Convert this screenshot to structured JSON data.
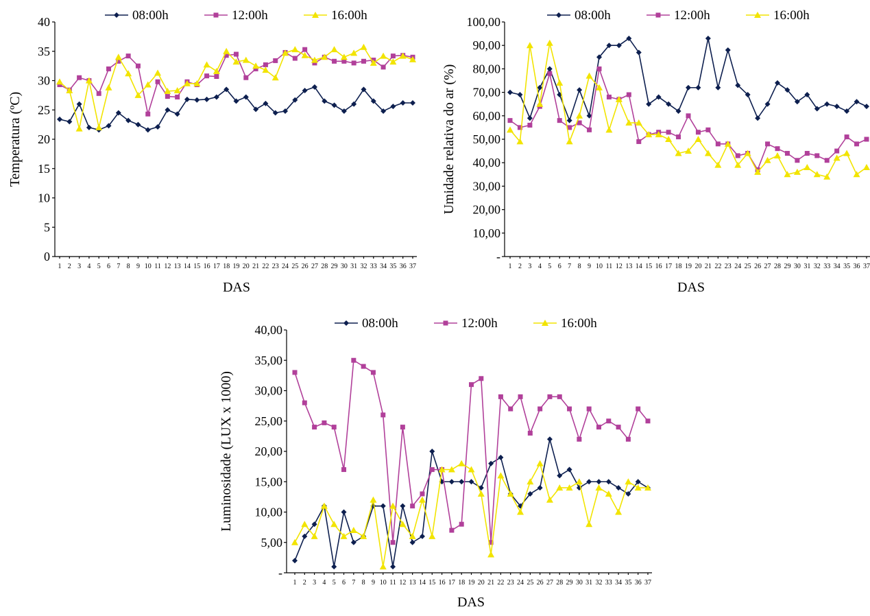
{
  "colors": {
    "s0800": "#0d1f4f",
    "s1200": "#b1409a",
    "s1600": "#f2e400"
  },
  "chart_data": [
    {
      "id": "temp",
      "type": "line",
      "title": "",
      "xlabel": "DAS",
      "ylabel": "Temperatura (ºC)",
      "ylim": [
        0,
        40
      ],
      "y_ticks": [
        "0",
        "5",
        "10",
        "15",
        "20",
        "25",
        "30",
        "35",
        "40"
      ],
      "x": [
        1,
        2,
        3,
        4,
        5,
        6,
        7,
        8,
        9,
        10,
        11,
        12,
        13,
        14,
        15,
        16,
        17,
        18,
        19,
        20,
        21,
        22,
        23,
        24,
        25,
        26,
        27,
        28,
        29,
        30,
        31,
        32,
        33,
        34,
        35,
        36,
        37
      ],
      "legend_position": "top",
      "series": [
        {
          "name": "08:00h",
          "color": "#0d1f4f",
          "marker": "diamond",
          "values": [
            23.4,
            23.0,
            26.0,
            22.0,
            21.6,
            22.3,
            24.5,
            23.2,
            22.5,
            21.6,
            22.1,
            25.0,
            24.3,
            26.8,
            26.7,
            26.8,
            27.2,
            28.5,
            26.5,
            27.2,
            25.1,
            26.1,
            24.5,
            24.8,
            26.7,
            28.3,
            28.9,
            26.5,
            25.8,
            24.8,
            26.0,
            28.5,
            26.5,
            24.8,
            25.6,
            26.2,
            26.2
          ]
        },
        {
          "name": "12:00h",
          "color": "#b1409a",
          "marker": "square",
          "values": [
            29.3,
            28.4,
            30.5,
            30.0,
            27.8,
            32.0,
            33.3,
            34.2,
            32.5,
            24.3,
            29.8,
            27.3,
            27.2,
            29.8,
            29.3,
            30.8,
            30.7,
            34.3,
            34.5,
            30.5,
            32.0,
            32.7,
            33.4,
            34.8,
            33.8,
            35.3,
            33.0,
            34.0,
            33.3,
            33.3,
            33.0,
            33.3,
            33.5,
            32.3,
            34.2,
            34.3,
            34.0
          ]
        },
        {
          "name": "16:00h",
          "color": "#f2e400",
          "marker": "triangle",
          "values": [
            29.8,
            28.3,
            21.8,
            30.0,
            22.0,
            28.8,
            34.0,
            31.2,
            27.5,
            29.3,
            31.3,
            28.2,
            28.3,
            29.5,
            29.5,
            32.7,
            31.6,
            35.0,
            33.2,
            33.5,
            32.5,
            31.8,
            30.5,
            34.7,
            35.3,
            34.3,
            33.5,
            34.0,
            35.3,
            34.0,
            34.7,
            35.7,
            33.0,
            34.2,
            33.2,
            34.2,
            33.6
          ]
        }
      ]
    },
    {
      "id": "umid",
      "type": "line",
      "title": "",
      "xlabel": "DAS",
      "ylabel": "Umidade relativa do ar (%)",
      "ylim": [
        0,
        100
      ],
      "y_ticks": [
        "-",
        "10,00",
        "20,00",
        "30,00",
        "40,00",
        "50,00",
        "60,00",
        "70,00",
        "80,00",
        "90,00",
        "100,00"
      ],
      "x": [
        1,
        2,
        3,
        4,
        5,
        6,
        7,
        8,
        9,
        10,
        11,
        12,
        13,
        14,
        15,
        16,
        17,
        18,
        19,
        20,
        21,
        22,
        23,
        24,
        25,
        26,
        27,
        28,
        29,
        30,
        31,
        32,
        33,
        34,
        35,
        36,
        37
      ],
      "legend_position": "top",
      "series": [
        {
          "name": "08:00h",
          "color": "#0d1f4f",
          "marker": "diamond",
          "values": [
            70,
            69,
            59,
            72,
            80,
            69,
            58,
            71,
            60,
            85,
            90,
            90,
            93,
            87,
            65,
            68,
            65,
            62,
            72,
            72,
            93,
            72,
            88,
            73,
            69,
            59,
            65,
            74,
            71,
            66,
            69,
            63,
            65,
            64,
            62,
            66,
            64
          ]
        },
        {
          "name": "12:00h",
          "color": "#b1409a",
          "marker": "square",
          "values": [
            58,
            55,
            56,
            64,
            78,
            58,
            55,
            57,
            54,
            80,
            68,
            67,
            69,
            49,
            52,
            53,
            53,
            51,
            60,
            53,
            54,
            48,
            48,
            43,
            44,
            37,
            48,
            46,
            44,
            41,
            44,
            43,
            41,
            45,
            51,
            48,
            50
          ]
        },
        {
          "name": "16:00h",
          "color": "#f2e400",
          "marker": "triangle",
          "values": [
            54,
            49,
            90,
            65,
            91,
            74,
            49,
            60,
            77,
            72,
            54,
            67,
            57,
            57,
            52,
            52,
            50,
            44,
            45,
            50,
            44,
            39,
            48,
            39,
            44,
            36,
            41,
            43,
            35,
            36,
            38,
            35,
            34,
            42,
            44,
            35,
            38
          ]
        }
      ]
    },
    {
      "id": "lum",
      "type": "line",
      "title": "",
      "xlabel": "DAS",
      "ylabel": "Luminosidade (LUX x 1000)",
      "ylim": [
        0,
        40
      ],
      "y_ticks": [
        "-",
        "5,00",
        "10,00",
        "15,00",
        "20,00",
        "25,00",
        "30,00",
        "35,00",
        "40,00"
      ],
      "x": [
        1,
        2,
        3,
        4,
        5,
        6,
        7,
        8,
        9,
        10,
        11,
        12,
        13,
        14,
        15,
        16,
        17,
        18,
        19,
        20,
        21,
        22,
        23,
        24,
        25,
        26,
        27,
        28,
        29,
        30,
        31,
        32,
        33,
        34,
        35,
        36,
        37
      ],
      "legend_position": "top",
      "series": [
        {
          "name": "08:00h",
          "color": "#0d1f4f",
          "marker": "diamond",
          "values": [
            2,
            6,
            8,
            11,
            1,
            10,
            5,
            6,
            11,
            11,
            1,
            11,
            5,
            6,
            20,
            15,
            15,
            15,
            15,
            14,
            18,
            19,
            13,
            11,
            13,
            14,
            22,
            16,
            17,
            14,
            15,
            15,
            15,
            14,
            13,
            15,
            14
          ]
        },
        {
          "name": "12:00h",
          "color": "#b1409a",
          "marker": "square",
          "values": [
            33,
            28,
            24,
            24.7,
            24,
            17,
            35,
            34,
            33,
            26,
            5,
            24,
            11,
            13,
            17,
            17,
            7,
            8,
            31,
            32,
            5,
            29,
            27,
            29,
            23,
            27,
            29,
            29,
            27,
            22,
            27,
            24,
            25,
            24,
            22,
            27,
            25
          ]
        },
        {
          "name": "16:00h",
          "color": "#f2e400",
          "marker": "triangle",
          "values": [
            5,
            8,
            6,
            11,
            8,
            6,
            7,
            6,
            12,
            1,
            11,
            8,
            6,
            12,
            6,
            17,
            17,
            18,
            17,
            13,
            3,
            16,
            13,
            10,
            15,
            18,
            12,
            14,
            14,
            15,
            8,
            14,
            13,
            10,
            15,
            14,
            14
          ]
        }
      ]
    }
  ]
}
